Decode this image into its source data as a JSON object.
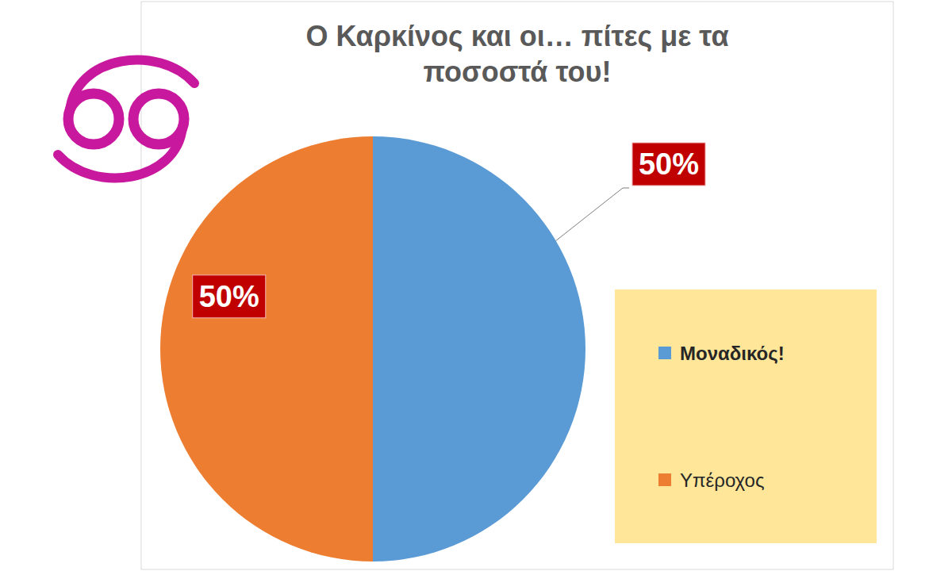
{
  "chart_data": {
    "type": "pie",
    "title": "Ο Καρκίνος και οι… πίτες με τα ποσοστά του!",
    "categories": [
      "Μοναδικός!",
      "Υπέροχος"
    ],
    "values": [
      50,
      50
    ],
    "value_labels": [
      "50%",
      "50%"
    ],
    "colors": [
      "#5b9bd5",
      "#ed7d31"
    ],
    "data_labels": true,
    "legend": "right"
  }
}
